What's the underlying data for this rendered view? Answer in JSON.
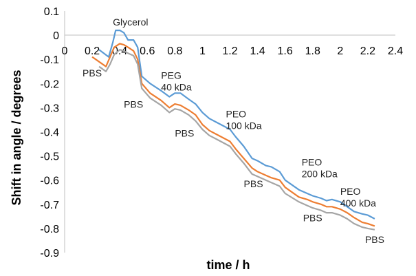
{
  "chart_data": {
    "type": "line",
    "xlabel": "time / h",
    "ylabel": "Shift in angle / degrees",
    "xlim": [
      0,
      2.4
    ],
    "ylim": [
      -0.9,
      0.1
    ],
    "xticks": [
      "0",
      "0.2",
      "0.4",
      "0.6",
      "0.8",
      "1",
      "1.2",
      "1.4",
      "1.6",
      "1.8",
      "2",
      "2.2",
      "2.4"
    ],
    "yticks": [
      "0.1",
      "0",
      "-0.1",
      "-0.2",
      "-0.3",
      "-0.4",
      "-0.5",
      "-0.6",
      "-0.7",
      "-0.8",
      "-0.9"
    ],
    "grid": false,
    "legend": "none",
    "series": [
      {
        "color": "#5b9bd5",
        "x": [
          0.25,
          0.32,
          0.35,
          0.37,
          0.4,
          0.43,
          0.46,
          0.5,
          0.53,
          0.56,
          0.62,
          0.7,
          0.76,
          0.8,
          0.84,
          0.9,
          0.95,
          1.0,
          1.05,
          1.1,
          1.2,
          1.24,
          1.3,
          1.36,
          1.4,
          1.46,
          1.5,
          1.56,
          1.6,
          1.7,
          1.76,
          1.8,
          1.86,
          1.9,
          1.94,
          2.0,
          2.05,
          2.1,
          2.16,
          2.2,
          2.25
        ],
        "y": [
          -0.06,
          -0.09,
          -0.03,
          0.02,
          0.02,
          0.01,
          -0.02,
          -0.02,
          -0.05,
          -0.17,
          -0.2,
          -0.23,
          -0.255,
          -0.24,
          -0.24,
          -0.265,
          -0.285,
          -0.32,
          -0.345,
          -0.36,
          -0.39,
          -0.42,
          -0.46,
          -0.51,
          -0.52,
          -0.54,
          -0.545,
          -0.565,
          -0.6,
          -0.64,
          -0.655,
          -0.665,
          -0.675,
          -0.685,
          -0.68,
          -0.69,
          -0.71,
          -0.73,
          -0.74,
          -0.745,
          -0.76
        ]
      },
      {
        "color": "#ed7d31",
        "x": [
          0.2,
          0.3,
          0.33,
          0.36,
          0.4,
          0.43,
          0.46,
          0.5,
          0.53,
          0.56,
          0.62,
          0.7,
          0.76,
          0.8,
          0.84,
          0.9,
          0.95,
          1.0,
          1.05,
          1.1,
          1.2,
          1.24,
          1.3,
          1.36,
          1.4,
          1.46,
          1.5,
          1.56,
          1.6,
          1.7,
          1.76,
          1.8,
          1.86,
          1.9,
          1.94,
          2.0,
          2.05,
          2.1,
          2.16,
          2.2,
          2.25
        ],
        "y": [
          -0.09,
          -0.13,
          -0.09,
          -0.05,
          -0.035,
          -0.04,
          -0.05,
          -0.065,
          -0.1,
          -0.2,
          -0.24,
          -0.27,
          -0.3,
          -0.285,
          -0.29,
          -0.31,
          -0.33,
          -0.37,
          -0.395,
          -0.41,
          -0.44,
          -0.47,
          -0.51,
          -0.55,
          -0.565,
          -0.58,
          -0.59,
          -0.6,
          -0.63,
          -0.67,
          -0.68,
          -0.69,
          -0.7,
          -0.71,
          -0.71,
          -0.72,
          -0.735,
          -0.755,
          -0.775,
          -0.78,
          -0.79
        ]
      },
      {
        "color": "#a5a5a5",
        "x": [
          0.25,
          0.3,
          0.33,
          0.36,
          0.4,
          0.43,
          0.46,
          0.5,
          0.53,
          0.56,
          0.62,
          0.7,
          0.76,
          0.8,
          0.84,
          0.9,
          0.95,
          1.0,
          1.05,
          1.1,
          1.2,
          1.24,
          1.3,
          1.36,
          1.4,
          1.46,
          1.5,
          1.56,
          1.6,
          1.7,
          1.76,
          1.8,
          1.86,
          1.9,
          1.94,
          2.0,
          2.05,
          2.1,
          2.16,
          2.2,
          2.25
        ],
        "y": [
          -0.13,
          -0.15,
          -0.12,
          -0.08,
          -0.06,
          -0.065,
          -0.075,
          -0.085,
          -0.12,
          -0.22,
          -0.26,
          -0.29,
          -0.32,
          -0.305,
          -0.31,
          -0.33,
          -0.355,
          -0.39,
          -0.415,
          -0.43,
          -0.46,
          -0.49,
          -0.53,
          -0.575,
          -0.585,
          -0.6,
          -0.61,
          -0.625,
          -0.655,
          -0.69,
          -0.705,
          -0.715,
          -0.725,
          -0.735,
          -0.735,
          -0.745,
          -0.76,
          -0.78,
          -0.795,
          -0.8,
          -0.805
        ]
      }
    ],
    "annotations": [
      {
        "lines": [
          "Glycerol"
        ],
        "x": 0.35,
        "y": 0.04
      },
      {
        "lines": [
          "PBS"
        ],
        "x": 0.13,
        "y": -0.17
      },
      {
        "lines": [
          "PBS"
        ],
        "x": 0.43,
        "y": -0.3
      },
      {
        "lines": [
          "PEG",
          "40 kDa"
        ],
        "x": 0.7,
        "y": -0.18
      },
      {
        "lines": [
          "PBS"
        ],
        "x": 0.8,
        "y": -0.42
      },
      {
        "lines": [
          "PEO",
          "100 kDa"
        ],
        "x": 1.17,
        "y": -0.34
      },
      {
        "lines": [
          "PBS"
        ],
        "x": 1.3,
        "y": -0.63
      },
      {
        "lines": [
          "PEO",
          "200 kDa"
        ],
        "x": 1.72,
        "y": -0.54
      },
      {
        "lines": [
          "PBS"
        ],
        "x": 1.73,
        "y": -0.77
      },
      {
        "lines": [
          "PEO",
          "400 kDa"
        ],
        "x": 2.0,
        "y": -0.66
      },
      {
        "lines": [
          "PBS"
        ],
        "x": 2.18,
        "y": -0.86
      }
    ]
  }
}
